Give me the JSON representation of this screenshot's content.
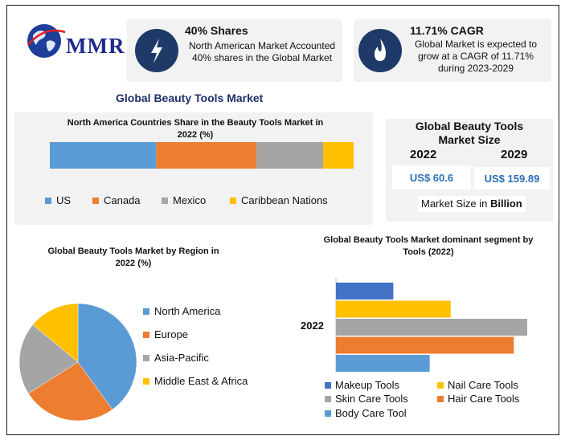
{
  "brand": {
    "name": "MMR"
  },
  "kpis": [
    {
      "title": "40% Shares",
      "text": "North American Market Accounted 40% shares in the Global Market",
      "icon": "lightning-icon"
    },
    {
      "title": "11.71% CAGR",
      "text": "Global Market is expected to grow at a CAGR of 11.71% during 2023-2029",
      "icon": "flame-icon"
    }
  ],
  "main_title": "Global Beauty Tools Market",
  "market_size": {
    "title": "Global Beauty Tools Market Size",
    "year_a": "2022",
    "year_b": "2029",
    "value_a": "US$ 60.6",
    "value_b": "US$ 159.89",
    "footnote_prefix": "Market Size in ",
    "footnote_unit": "Billion"
  },
  "colors": {
    "blue": "#5b9bd5",
    "orange": "#ed7d31",
    "gray": "#a5a5a5",
    "gold": "#ffc000",
    "darkblue": "#4472c4",
    "lightblue": "#5b9bd5"
  },
  "chart_data": [
    {
      "type": "bar",
      "orientation": "horizontal-stacked",
      "title": "North America Countries Share in the Beauty Tools Market in 2022 (%)",
      "series": [
        {
          "name": "US",
          "values": [
            35
          ],
          "color": "#5b9bd5"
        },
        {
          "name": "Canada",
          "values": [
            33
          ],
          "color": "#ed7d31"
        },
        {
          "name": "Mexico",
          "values": [
            22
          ],
          "color": "#a5a5a5"
        },
        {
          "name": "Caribbean Nations",
          "values": [
            10
          ],
          "color": "#ffc000"
        }
      ]
    },
    {
      "type": "pie",
      "title": "Global Beauty Tools Market by Region in 2022 (%)",
      "labels": [
        "North America",
        "Europe",
        "Asia-Pacific",
        "Middle East & Africa"
      ],
      "values": [
        40,
        26,
        20,
        14
      ],
      "colors": [
        "#5b9bd5",
        "#ed7d31",
        "#a5a5a5",
        "#ffc000"
      ]
    },
    {
      "type": "bar",
      "orientation": "horizontal",
      "title": "Global Beauty Tools Market dominant segment by Tools (2022)",
      "categories": [
        "2022"
      ],
      "series": [
        {
          "name": "Makeup Tools",
          "values": [
            30
          ],
          "color": "#4472c4"
        },
        {
          "name": "Nail Care Tools",
          "values": [
            60
          ],
          "color": "#ffc000"
        },
        {
          "name": "Skin Care Tools",
          "values": [
            100
          ],
          "color": "#a5a5a5"
        },
        {
          "name": "Hair Care Tools",
          "values": [
            93
          ],
          "color": "#ed7d31"
        },
        {
          "name": "Body Care Tool",
          "values": [
            49
          ],
          "color": "#5b9bd5"
        }
      ]
    }
  ]
}
